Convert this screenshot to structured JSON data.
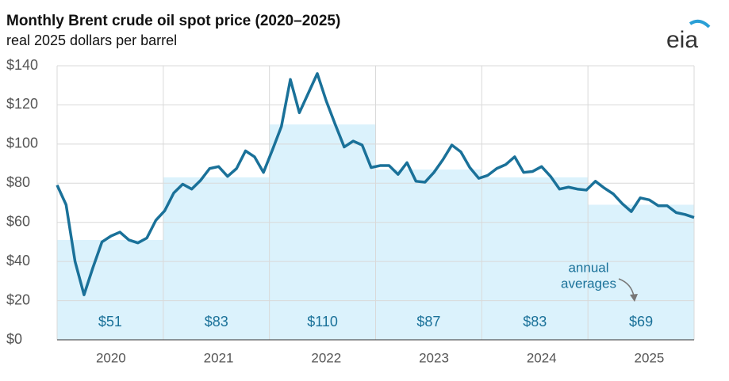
{
  "chart_data": {
    "type": "line",
    "title": "Monthly Brent crude oil spot price (2020–2025)",
    "subtitle": "real 2025 dollars per barrel",
    "logo": "eia",
    "annotation": [
      "annual",
      "averages"
    ],
    "categories": [
      null,
      null,
      null,
      null,
      null,
      null,
      "2020",
      null,
      null,
      null,
      null,
      null,
      null,
      null,
      null,
      null,
      null,
      null,
      "2021",
      null,
      null,
      null,
      null,
      null,
      null,
      null,
      null,
      null,
      null,
      null,
      "2022",
      null,
      null,
      null,
      null,
      null,
      null,
      null,
      null,
      null,
      null,
      null,
      "2023",
      null,
      null,
      null,
      null,
      null,
      null,
      null,
      null,
      null,
      null,
      null,
      "2024",
      null,
      null,
      null,
      null,
      null,
      null,
      null,
      null,
      null,
      null,
      null,
      "2025",
      null,
      null,
      null,
      null,
      null
    ],
    "series": [
      {
        "color": "#1a7199",
        "values": [
          79,
          69,
          40,
          23,
          37,
          50,
          53,
          55,
          51,
          49.5,
          52,
          61,
          66,
          75,
          79.5,
          77,
          81.5,
          87.5,
          88.5,
          83.5,
          87.5,
          96.5,
          93.5,
          85.5,
          97,
          109,
          133,
          116,
          126,
          136,
          122,
          110,
          98.5,
          101.5,
          99.5,
          88,
          89,
          89,
          84.5,
          90.5,
          81,
          80.5,
          85.5,
          92,
          99.5,
          96,
          88,
          82.5,
          84,
          87.5,
          89.5,
          93.5,
          85.5,
          86,
          88.5,
          83.5,
          77,
          78,
          77,
          76.5,
          81,
          77.5,
          74.5,
          69.5,
          65.5,
          72.5,
          71.5,
          68.5,
          68.5,
          65,
          64,
          62.5
        ]
      }
    ],
    "averages": {
      "color": "#dbf2fc",
      "label_color": "#1a7199",
      "values": [
        51,
        83,
        110,
        87,
        83,
        69
      ],
      "value_labels": [
        "$51",
        "$83",
        "$110",
        "$87",
        "$83",
        "$69"
      ]
    },
    "ylim": [
      0,
      140
    ],
    "yticks": [
      {
        "value": 0,
        "label": "$0"
      },
      {
        "value": 20,
        "label": "$20"
      },
      {
        "value": 40,
        "label": "$40"
      },
      {
        "value": 60,
        "label": "$60"
      },
      {
        "value": 80,
        "label": "$80"
      },
      {
        "value": 100,
        "label": "$100"
      },
      {
        "value": 120,
        "label": "$120"
      },
      {
        "value": 140,
        "label": "$140"
      }
    ],
    "grid": true
  }
}
